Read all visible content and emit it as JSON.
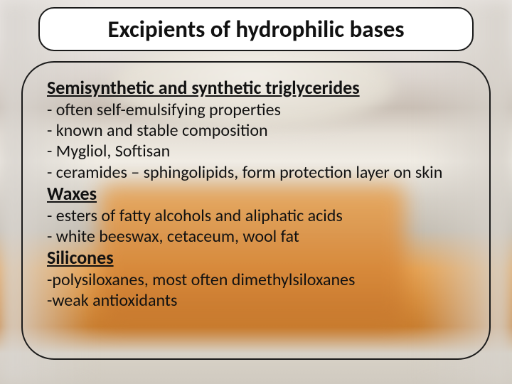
{
  "slide": {
    "title": "Excipients of hydrophilic bases",
    "sections": [
      {
        "heading": "Semisynthetic and synthetic triglycerides",
        "lines": [
          "- often self-emulsifying properties",
          "- known and stable composition",
          "- Mygliol, Softisan",
          "- ceramides – sphingolipids, form protection layer on skin"
        ]
      },
      {
        "heading": "Waxes",
        "lines": [
          "- esters of fatty alcohols and  aliphatic acids",
          "- white beeswax, cetaceum, wool fat"
        ]
      },
      {
        "heading": "Silicones",
        "lines": [
          "-polysiloxanes, most often dimethylsiloxanes",
          "-weak antioxidants"
        ]
      }
    ]
  },
  "style": {
    "title_fontsize": 33,
    "heading_fontsize": 26,
    "body_fontsize": 24,
    "text_color": "#111111",
    "box_border_color": "#1a1a1a",
    "box_bg": "#ffffff",
    "title_box_radius": 22,
    "content_box_radius": 46
  }
}
